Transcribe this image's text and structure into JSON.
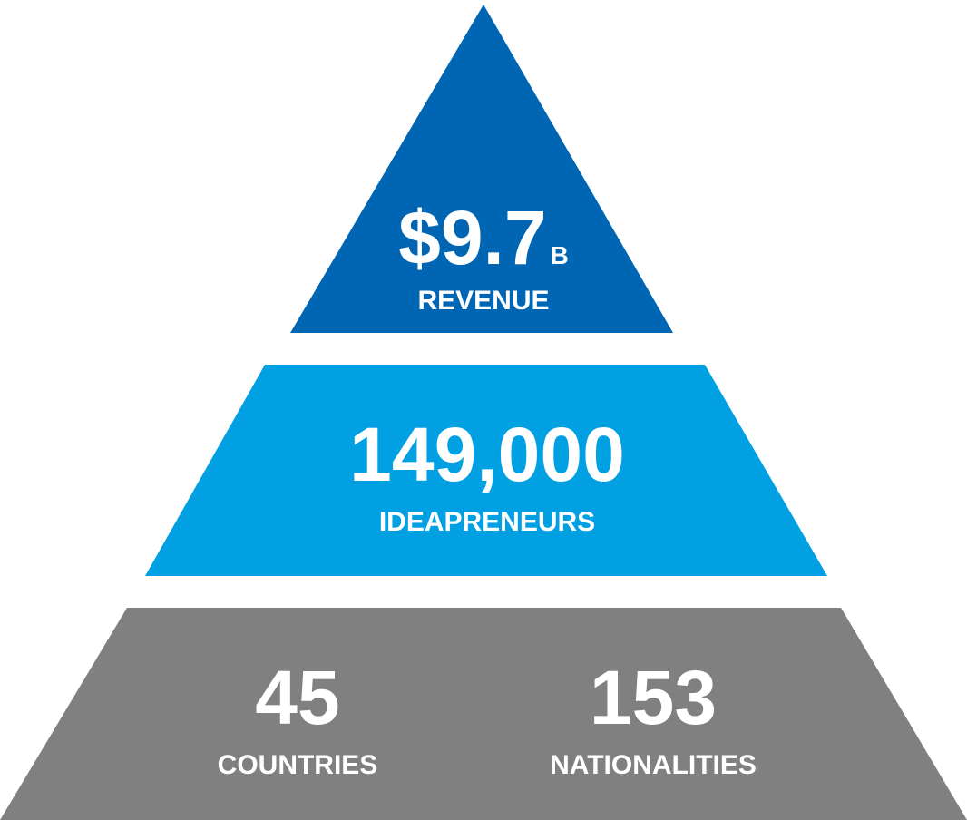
{
  "tiers": [
    {
      "value": "$9.7",
      "unit": "B",
      "label": "REVENUE"
    },
    {
      "value": "149,000",
      "label": "IDEAPRENEURS"
    },
    {
      "stats": [
        {
          "value": "45",
          "label": "COUNTRIES"
        },
        {
          "value": "153",
          "label": "NATIONALITIES"
        }
      ]
    }
  ]
}
